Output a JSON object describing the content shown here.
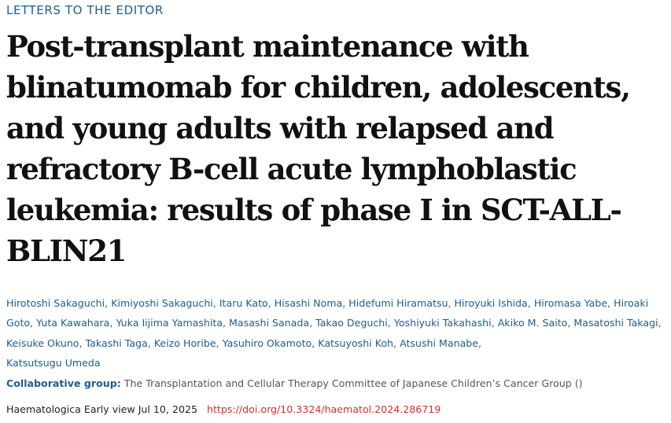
{
  "section_label": "LETTERS TO THE EDITOR",
  "title": "Post-transplant maintenance with blinatumomab for children, adolescents, and young adults with relapsed and refractory B-cell acute lymphoblastic leukemia: results of phase I in SCT-ALL-BLIN21",
  "authors": [
    "Hirotoshi Sakaguchi",
    "Kimiyoshi Sakaguchi",
    "Itaru Kato",
    "Hisashi Noma",
    "Hidefumi Hiramatsu",
    "Hiroyuki Ishida",
    "Hiromasa Yabe",
    "Hiroaki Goto",
    "Yuta Kawahara",
    "Yuka Iijima Yamashita",
    "Masashi Sanada",
    "Takao Deguchi",
    "Yoshiyuki Takahashi",
    "Akiko M. Saito",
    "Masatoshi Takagi",
    "Keisuke Okuno",
    "Takashi Taga",
    "Keizo Horibe",
    "Yasuhiro Okamoto",
    "Katsuyoshi Koh",
    "Atsushi Manabe",
    "Katsutsugu Umeda"
  ],
  "author_separator": ",",
  "collaborative_group": {
    "label": "Collaborative group:",
    "value": "The Transplantation and Cellular Therapy Committee of Japanese Children’s Cancer Group ()"
  },
  "publication": {
    "journal_line": "Haematologica Early view Jul 10, 2025",
    "doi": "https://doi.org/10.3324/haematol.2024.286719"
  }
}
